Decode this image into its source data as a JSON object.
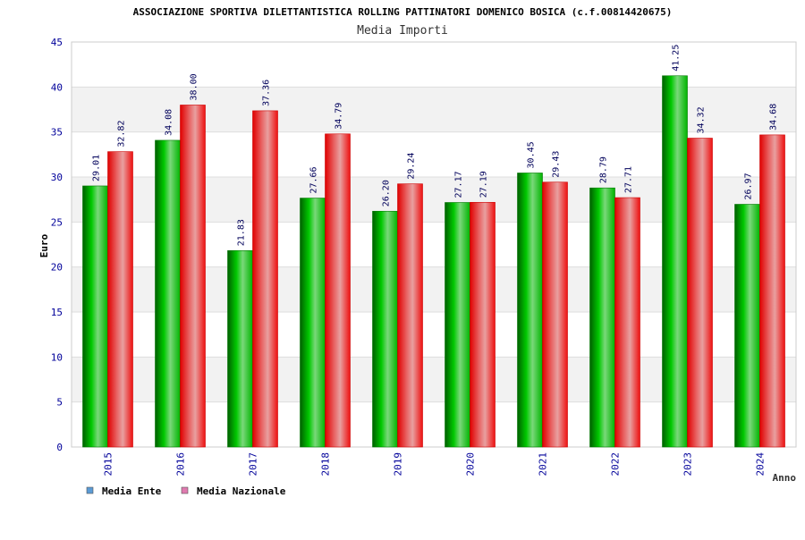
{
  "chart_data": {
    "type": "bar",
    "title": "ASSOCIAZIONE SPORTIVA DILETTANTISTICA ROLLING PATTINATORI DOMENICO BOSICA (c.f.00814420675)",
    "subtitle": "Media Importi",
    "xlabel": "Anno",
    "ylabel": "Euro",
    "ylim": [
      0,
      45
    ],
    "yticks": [
      0,
      5,
      10,
      15,
      20,
      25,
      30,
      35,
      40,
      45
    ],
    "grid": true,
    "legend_position": "bottom-left",
    "categories": [
      "2015",
      "2016",
      "2017",
      "2018",
      "2019",
      "2020",
      "2021",
      "2022",
      "2023",
      "2024"
    ],
    "series": [
      {
        "name": "Media Ente",
        "color": "#00aa00",
        "legend_color": "#5b9bd5",
        "values": [
          29.01,
          34.08,
          21.83,
          27.66,
          26.2,
          27.17,
          30.45,
          28.79,
          41.25,
          26.97
        ],
        "labels": [
          "29.01",
          "34.08",
          "21.83",
          "27.66",
          "26.20",
          "27.17",
          "30.45",
          "28.79",
          "41.25",
          "26.97"
        ]
      },
      {
        "name": "Media Nazionale",
        "color": "#ee1111",
        "legend_color": "#e07ab0",
        "values": [
          32.82,
          38.0,
          37.36,
          34.79,
          29.24,
          27.19,
          29.43,
          27.71,
          34.32,
          34.68
        ],
        "labels": [
          "32.82",
          "38.00",
          "37.36",
          "34.79",
          "29.24",
          "27.19",
          "29.43",
          "27.71",
          "34.32",
          "34.68"
        ]
      }
    ]
  }
}
